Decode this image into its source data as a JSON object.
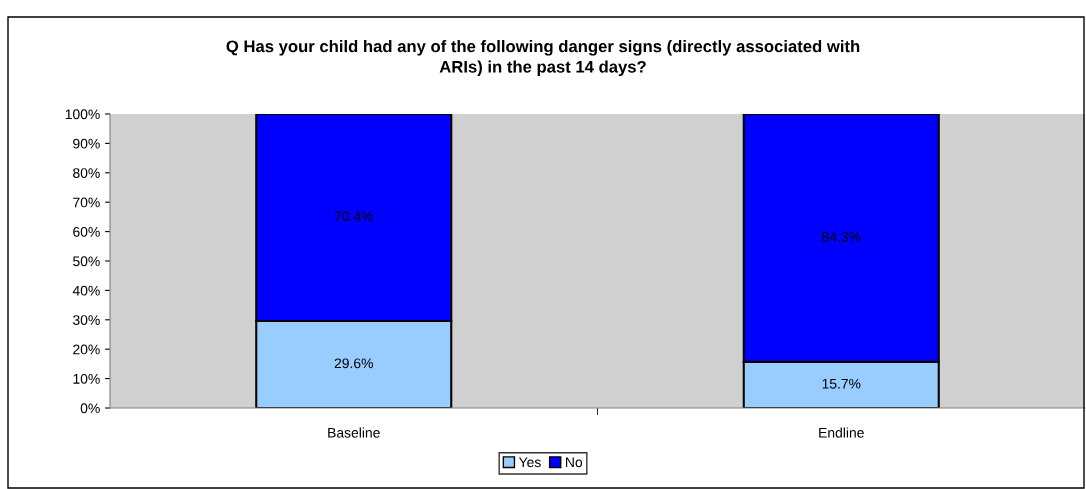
{
  "chart_data": {
    "type": "bar",
    "title": "Q Has your child had any of the following danger signs (directly associated with\nARIs) in the past 14 days?",
    "categories": [
      "Baseline",
      "Endline"
    ],
    "stacked": true,
    "series": [
      {
        "name": "Yes",
        "color": "#99ccff",
        "values": [
          29.6,
          15.7
        ],
        "value_labels": [
          "29.6%",
          "15.7%"
        ]
      },
      {
        "name": "No",
        "color": "#0000ff",
        "values": [
          70.4,
          84.3
        ],
        "value_labels": [
          "70.4%",
          "84.3%"
        ]
      }
    ],
    "ylim": [
      0,
      100
    ],
    "yticks": [
      {
        "value": 0,
        "label": "0%"
      },
      {
        "value": 10,
        "label": "10%"
      },
      {
        "value": 20,
        "label": "20%"
      },
      {
        "value": 30,
        "label": "30%"
      },
      {
        "value": 40,
        "label": "40%"
      },
      {
        "value": 50,
        "label": "50%"
      },
      {
        "value": 60,
        "label": "60%"
      },
      {
        "value": 70,
        "label": "70%"
      },
      {
        "value": 80,
        "label": "80%"
      },
      {
        "value": 90,
        "label": "90%"
      },
      {
        "value": 100,
        "label": "100%"
      }
    ],
    "grid": false,
    "legend": "bottom"
  }
}
